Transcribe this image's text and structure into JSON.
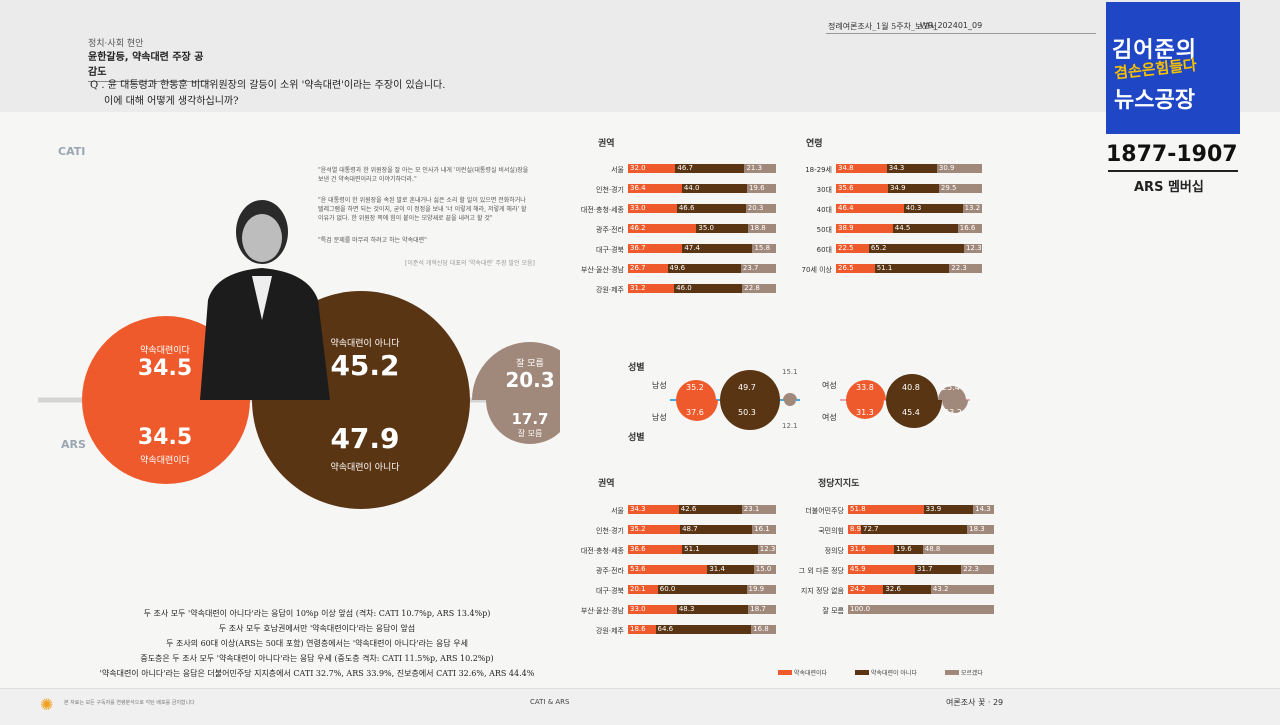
{
  "header": {
    "section": "정치·사회 현안",
    "topic": "윤한갈등, 약속대련 주장 공감도",
    "report": "정례여론조사_1월 5주차_보고서",
    "code": "WR_202401_09",
    "question_line1": "Q . 윤 대통령과 한동훈 비대위원장의 갈등이 소위 '약속대련'이라는 주장이 있습니다.",
    "question_line2": "이에 대해 어떻게 생각하십니까?"
  },
  "logo": {
    "line1": "김어준의",
    "line2": "겸손은힘들다",
    "line3": "뉴스공장",
    "phone": "1877-1907",
    "membership": "ARS 멤버십"
  },
  "quotes": {
    "q1": "\"윤석열 대통령과 한 위원장을 잘 아는 모 인사가 내게 '이런실(대통령실 비서실)장을 보낸 건 약속대련이라고 이야기하더라.\"",
    "q2": "\"윤 대통령이 한 위원장을 속된 말로 혼내거나 싫은 소리 할 일이 있으면 전화하거나 텔레그램을 하면 되는 것이지, 굳이 이 정정을 보내 '너 이렇게 해라, 저렇게 해라' 할 이유가 없다. 한 위원장 쪽에 힘이 붙이는 모양새로 끝을 내려고 할 것\"",
    "q3": "\"특검 문제를 마무리 하려고 하는 약속대련\"",
    "source": "[이준석 개혁신당 대표의 '약속대련' 주장 발언 모음]"
  },
  "labels": {
    "cati": "CATI",
    "ars": "ARS",
    "region": "권역",
    "age": "연령",
    "gender": "성별",
    "party": "정당지지도",
    "male": "남성",
    "female": "여성"
  },
  "chart_data": [
    {
      "type": "bubble",
      "name": "CATI",
      "categories": [
        "약속대련이다",
        "약속대련이 아니다",
        "잘 모름"
      ],
      "values": [
        34.5,
        45.2,
        20.3
      ]
    },
    {
      "type": "bubble",
      "name": "ARS",
      "categories": [
        "약속대련이다",
        "약속대련이 아니다",
        "잘 모름"
      ],
      "values": [
        34.5,
        47.9,
        17.7
      ]
    },
    {
      "type": "bar",
      "stacked": true,
      "name": "CATI 권역",
      "categories": [
        "서울",
        "인천·경기",
        "대전·충청·세종",
        "광주·전라",
        "대구·경북",
        "부산·울산·경남",
        "강원·제주"
      ],
      "series": [
        {
          "values": [
            32.0,
            36.4,
            33.0,
            46.2,
            36.7,
            26.7,
            31.2
          ]
        },
        {
          "values": [
            46.7,
            44.0,
            46.6,
            35.0,
            47.4,
            49.6,
            46.0
          ]
        },
        {
          "values": [
            21.3,
            19.6,
            20.3,
            18.8,
            15.8,
            23.7,
            22.8
          ]
        }
      ]
    },
    {
      "type": "bar",
      "stacked": true,
      "name": "CATI 연령",
      "categories": [
        "18-29세",
        "30대",
        "40대",
        "50대",
        "60대",
        "70세 이상"
      ],
      "series": [
        {
          "values": [
            34.8,
            35.6,
            46.4,
            38.9,
            22.5,
            26.5
          ]
        },
        {
          "values": [
            34.3,
            34.9,
            40.3,
            44.5,
            65.2,
            51.1
          ]
        },
        {
          "values": [
            30.9,
            29.5,
            13.2,
            16.6,
            12.3,
            22.3
          ]
        }
      ]
    },
    {
      "type": "bubble",
      "name": "성별",
      "categories": [
        "남성",
        "여성"
      ],
      "cati": {
        "male": [
          35.2,
          49.7,
          15.1
        ],
        "female": [
          33.8,
          40.8,
          25.4
        ]
      },
      "ars": {
        "male": [
          37.6,
          50.3,
          12.1
        ],
        "female": [
          31.3,
          45.4,
          23.2
        ]
      }
    },
    {
      "type": "bar",
      "stacked": true,
      "name": "ARS 권역",
      "categories": [
        "서울",
        "인천·경기",
        "대전·충청·세종",
        "광주·전라",
        "대구·경북",
        "부산·울산·경남",
        "강원·제주"
      ],
      "series": [
        {
          "values": [
            34.3,
            35.2,
            36.6,
            53.6,
            20.1,
            33.0,
            18.6
          ]
        },
        {
          "values": [
            42.6,
            48.7,
            51.1,
            31.4,
            60.0,
            48.3,
            64.6
          ]
        },
        {
          "values": [
            23.1,
            16.1,
            12.3,
            15.0,
            19.9,
            18.7,
            16.8
          ]
        }
      ]
    },
    {
      "type": "bar",
      "stacked": true,
      "name": "ARS 정당지지도",
      "categories": [
        "더불어민주당",
        "국민의힘",
        "정의당",
        "그 외 다른 정당",
        "지지 정당 없음",
        "잘 모름"
      ],
      "series": [
        {
          "values": [
            51.8,
            8.9,
            31.6,
            45.9,
            24.2,
            0
          ]
        },
        {
          "values": [
            33.9,
            72.7,
            19.6,
            31.7,
            32.6,
            0
          ]
        },
        {
          "values": [
            14.3,
            18.3,
            48.8,
            22.3,
            43.2,
            100.0
          ]
        }
      ]
    }
  ],
  "legend": [
    "약속대련이다",
    "약속대련이 아니다",
    "모르겠다"
  ],
  "notes": [
    "두 조사 모두 '약속대련이 아니다'라는 응답이 10%p 이상 앞섬 (격차: CATI 10.7%p, ARS 13.4%p)",
    "두 조사 모두 호남권에서만 '약속대련이다'라는 응답이 앞섬",
    "두 조사의 60대 이상(ARS는 50대 포함) 연령층에서는 '약속대련이 아니다'라는 응답 우세",
    "중도층은 두 조사 모두 '약속대련이 아니다'라는 응답 우세 (중도층 격차: CATI 11.5%p, ARS 10.2%p)",
    "'약속대련이 아니다'라는 응답은 더불어민주당 지지층에서 CATI 32.7%, ARS 33.9%, 진보층에서 CATI 32.6%, ARS 44.4%"
  ],
  "footer": {
    "left": "본 자료는 모든 구독자를 연령분석으로 각탄 배포를 금지합니다",
    "center": "CATI & ARS",
    "right": "여론조사 꽃 · 29"
  },
  "colors": {
    "yes": "#ee5a2c",
    "no": "#5a3514",
    "unknown": "#a0887b"
  }
}
